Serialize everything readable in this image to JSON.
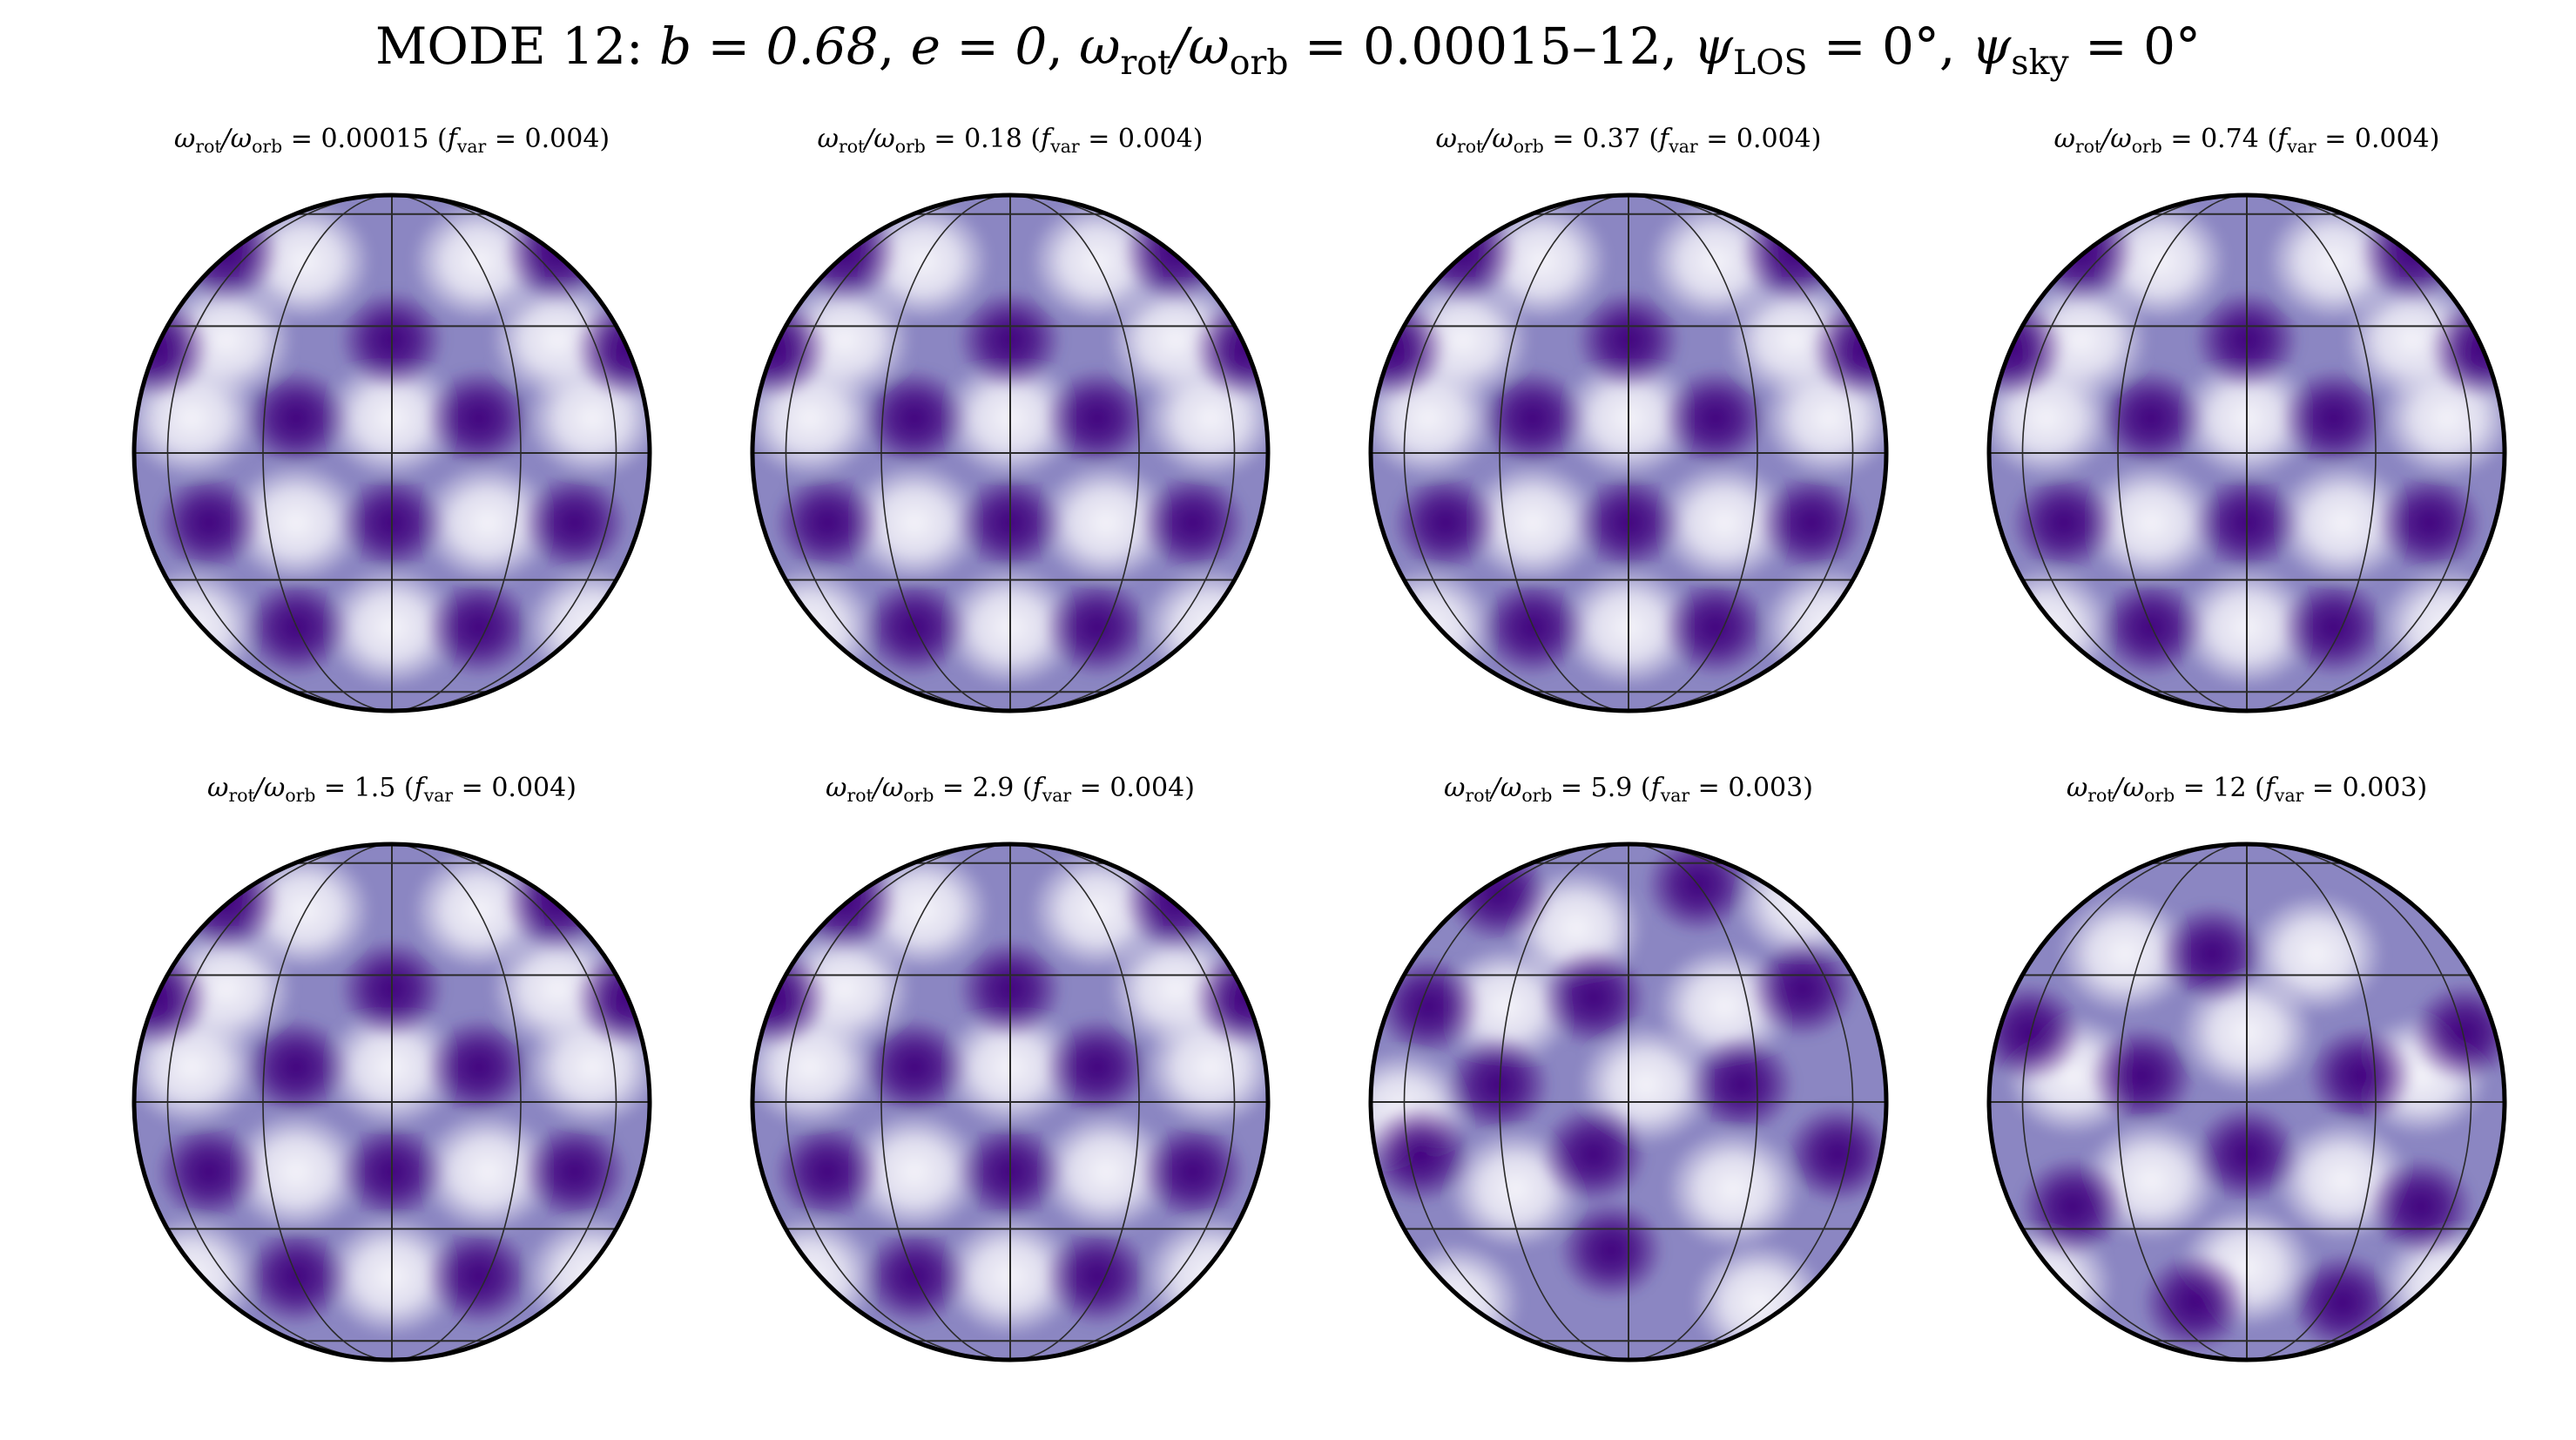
{
  "figure": {
    "title_parts": {
      "prefix": "MODE 12: ",
      "b": "b = 0.68",
      "e": "e = 0",
      "omega": "ω",
      "rot": "rot",
      "slash": "/ω",
      "orb": "orb",
      "omega_range": " = 0.00015–12",
      "psi": "ψ",
      "los": "LOS",
      "los_val": " = 0°",
      "sky": "sky",
      "sky_val": " = 0°",
      "sep": ", "
    },
    "colors": {
      "dark": "#3f007d",
      "mid": "#8b86c2",
      "light": "#f4f3f9",
      "grid": "#2a2a2a"
    },
    "colormap": "purples"
  },
  "panels": [
    {
      "ratio": "0.00015",
      "fvar": "0.004"
    },
    {
      "ratio": "0.18",
      "fvar": "0.004"
    },
    {
      "ratio": "0.37",
      "fvar": "0.004"
    },
    {
      "ratio": "0.74",
      "fvar": "0.004"
    },
    {
      "ratio": "1.5",
      "fvar": "0.004"
    },
    {
      "ratio": "2.9",
      "fvar": "0.004"
    },
    {
      "ratio": "5.9",
      "fvar": "0.003"
    },
    {
      "ratio": "12",
      "fvar": "0.003"
    }
  ],
  "labels": {
    "omega": "ω",
    "rot": "rot",
    "orb": "orb",
    "slash": "/ω",
    "eq": " = ",
    "open": " (",
    "f": "f",
    "var": "var",
    "close": ")"
  }
}
